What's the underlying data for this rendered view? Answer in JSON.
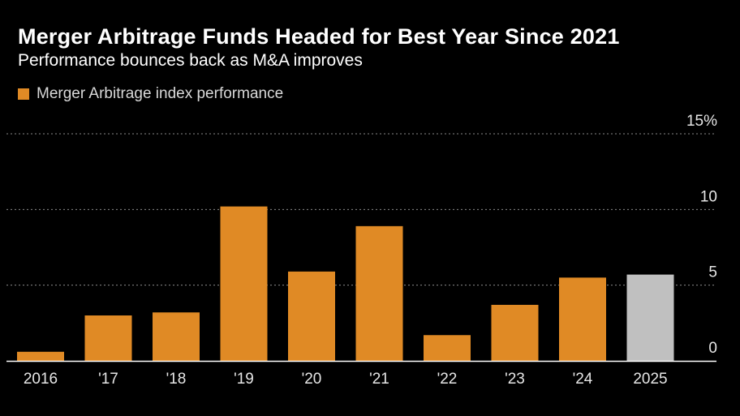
{
  "header": {
    "title": "Merger Arbitrage Funds Headed for Best Year Since 2021",
    "subtitle": "Performance bounces back as M&A improves"
  },
  "legend": {
    "label": "Merger Arbitrage index performance"
  },
  "colors": {
    "background": "#000000",
    "bar": "#e08a25",
    "bar_highlight": "#c0c0c0",
    "gridline": "#8a8a8a",
    "axis_text": "#e6e6e6"
  },
  "chart_data": {
    "type": "bar",
    "title": "Merger Arbitrage Funds Headed for Best Year Since 2021",
    "subtitle": "Performance bounces back as M&A improves",
    "categories": [
      "2016",
      "'17",
      "'18",
      "'19",
      "'20",
      "'21",
      "'22",
      "'23",
      "'24",
      "2025"
    ],
    "series": [
      {
        "name": "Merger Arbitrage index performance",
        "values": [
          0.6,
          3.0,
          3.2,
          10.2,
          5.9,
          8.9,
          1.7,
          3.7,
          5.5,
          5.7
        ]
      }
    ],
    "highlight_category": "2025",
    "y_ticks": [
      "15%",
      "10",
      "5",
      "0"
    ],
    "y_tick_values": [
      15,
      10,
      5,
      0
    ],
    "ylim": [
      0,
      15
    ],
    "xlabel": "",
    "ylabel": "",
    "grid": true,
    "y_axis_side": "right"
  }
}
